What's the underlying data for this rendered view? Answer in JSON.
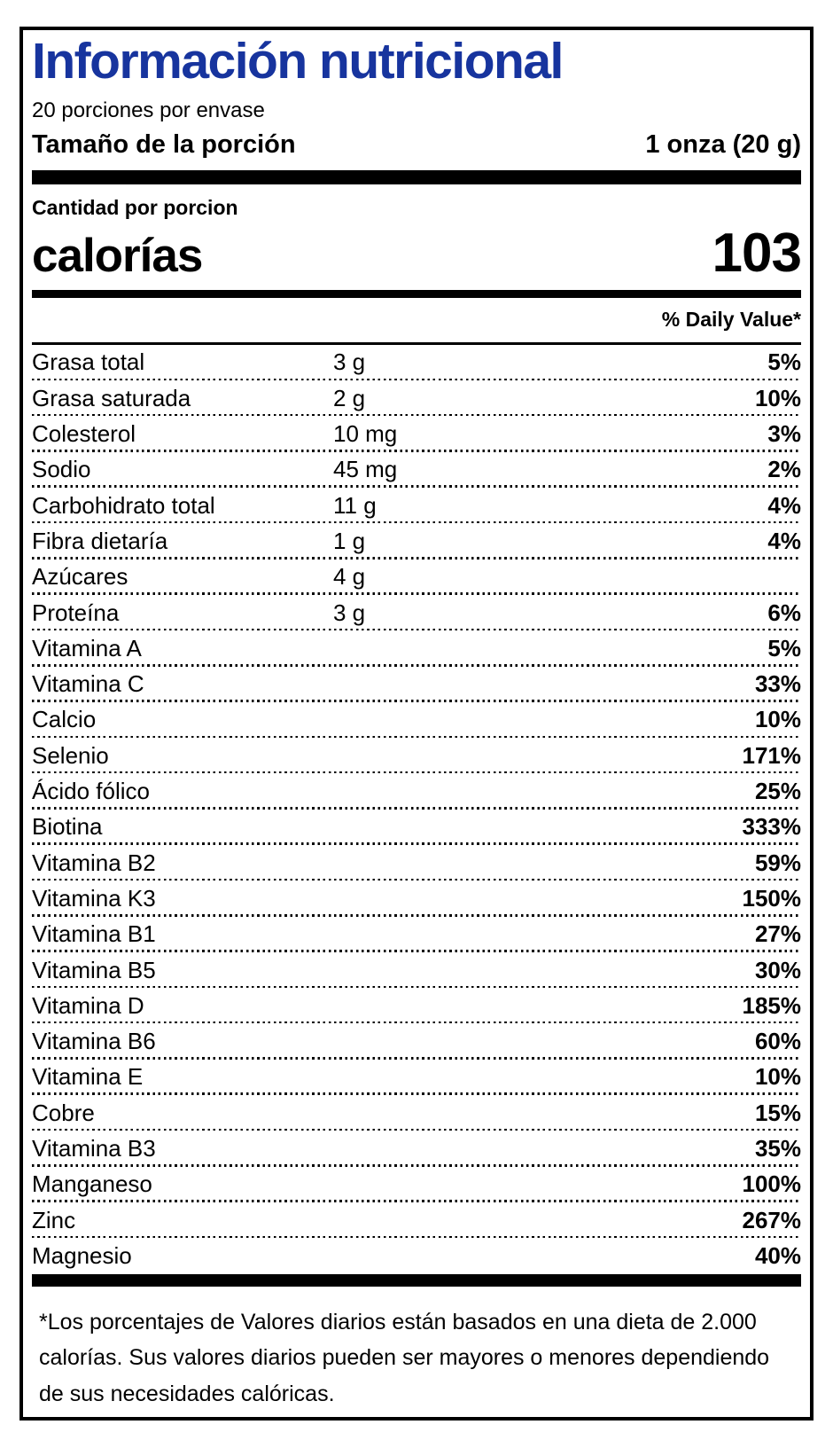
{
  "label": {
    "title": "Información nutricional",
    "servings_per_container": "20 porciones por envase",
    "serving_size_label": "Tamaño de la porción",
    "serving_size_value": "1 onza (20 g)",
    "amount_per_serving": "Cantidad por porcion",
    "calories_label": "calorías",
    "calories_value": "103",
    "daily_value_header": "% Daily Value*",
    "rows": [
      {
        "name": "Grasa total",
        "amount": "3 g",
        "daily_value": "5%"
      },
      {
        "name": "Grasa saturada",
        "amount": "2 g",
        "daily_value": "10%"
      },
      {
        "name": "Colesterol",
        "amount": "10 mg",
        "daily_value": "3%"
      },
      {
        "name": "Sodio",
        "amount": "45 mg",
        "daily_value": "2%"
      },
      {
        "name": "Carbohidrato total",
        "amount": "11 g",
        "daily_value": "4%"
      },
      {
        "name": "Fibra dietaría",
        "amount": "1 g",
        "daily_value": "4%"
      },
      {
        "name": "Azúcares",
        "amount": "4 g",
        "daily_value": ""
      },
      {
        "name": "Proteína",
        "amount": "3 g",
        "daily_value": "6%"
      },
      {
        "name": "Vitamina A",
        "amount": "",
        "daily_value": "5%"
      },
      {
        "name": "Vitamina C",
        "amount": "",
        "daily_value": "33%"
      },
      {
        "name": "Calcio",
        "amount": "",
        "daily_value": "10%"
      },
      {
        "name": "Selenio",
        "amount": "",
        "daily_value": "171%"
      },
      {
        "name": "Ácido fólico",
        "amount": "",
        "daily_value": "25%"
      },
      {
        "name": "Biotina",
        "amount": "",
        "daily_value": "333%"
      },
      {
        "name": "Vitamina B2",
        "amount": "",
        "daily_value": "59%"
      },
      {
        "name": "Vitamina K3",
        "amount": "",
        "daily_value": "150%"
      },
      {
        "name": "Vitamina B1",
        "amount": "",
        "daily_value": "27%"
      },
      {
        "name": "Vitamina B5",
        "amount": "",
        "daily_value": "30%"
      },
      {
        "name": "Vitamina D",
        "amount": "",
        "daily_value": "185%"
      },
      {
        "name": "Vitamina B6",
        "amount": "",
        "daily_value": "60%"
      },
      {
        "name": "Vitamina E",
        "amount": "",
        "daily_value": "10%"
      },
      {
        "name": "Cobre",
        "amount": "",
        "daily_value": "15%"
      },
      {
        "name": "Vitamina B3",
        "amount": "",
        "daily_value": "35%"
      },
      {
        "name": "Manganeso",
        "amount": "",
        "daily_value": "100%"
      },
      {
        "name": "Zinc",
        "amount": "",
        "daily_value": "267%"
      },
      {
        "name": "Magnesio",
        "amount": "",
        "daily_value": "40%"
      }
    ],
    "footnote": "*Los porcentajes de Valores diarios están basados en una dieta de 2.000 calorías. Sus valores diarios pueden ser mayores o menores dependiendo de sus necesidades calóricas.",
    "colors": {
      "title_blue": "#17349e",
      "text": "#000000",
      "background": "#ffffff"
    }
  }
}
